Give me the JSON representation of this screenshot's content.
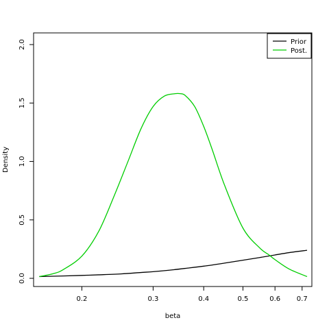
{
  "chart_data": {
    "type": "line",
    "title": "",
    "xlabel": "beta",
    "ylabel": "Density",
    "x_scale": "log",
    "xlim": [
      0.152,
      0.74
    ],
    "ylim": [
      -0.07,
      2.1
    ],
    "x_ticks": [
      {
        "value": 0.2,
        "label": "0.2"
      },
      {
        "value": 0.3,
        "label": "0.3"
      },
      {
        "value": 0.4,
        "label": "0.4"
      },
      {
        "value": 0.5,
        "label": "0.5"
      },
      {
        "value": 0.6,
        "label": "0.6"
      },
      {
        "value": 0.7,
        "label": "0.7"
      }
    ],
    "y_ticks": [
      {
        "value": 0.0,
        "label": "0.0"
      },
      {
        "value": 0.5,
        "label": "0.5"
      },
      {
        "value": 1.0,
        "label": "1.0"
      },
      {
        "value": 1.5,
        "label": "1.5"
      },
      {
        "value": 2.0,
        "label": "2.0"
      }
    ],
    "grid": false,
    "legend": {
      "position": "top-right"
    },
    "series": [
      {
        "name": "Prior",
        "color": "#000000",
        "x": [
          0.157,
          0.18,
          0.2,
          0.22,
          0.25,
          0.28,
          0.3,
          0.33,
          0.36,
          0.4,
          0.45,
          0.5,
          0.55,
          0.6,
          0.65,
          0.72
        ],
        "y": [
          0.015,
          0.02,
          0.025,
          0.03,
          0.038,
          0.05,
          0.057,
          0.07,
          0.085,
          0.104,
          0.13,
          0.155,
          0.178,
          0.2,
          0.22,
          0.24
        ]
      },
      {
        "name": "Post.",
        "color": "#00cd00",
        "x": [
          0.157,
          0.17,
          0.18,
          0.2,
          0.22,
          0.24,
          0.26,
          0.28,
          0.3,
          0.32,
          0.34,
          0.35,
          0.36,
          0.38,
          0.4,
          0.42,
          0.45,
          0.5,
          0.55,
          0.58,
          0.6,
          0.65,
          0.72
        ],
        "y": [
          0.015,
          0.04,
          0.075,
          0.19,
          0.4,
          0.7,
          1.0,
          1.28,
          1.47,
          1.56,
          1.58,
          1.58,
          1.565,
          1.47,
          1.3,
          1.1,
          0.8,
          0.43,
          0.26,
          0.2,
          0.16,
          0.08,
          0.015
        ]
      }
    ]
  }
}
